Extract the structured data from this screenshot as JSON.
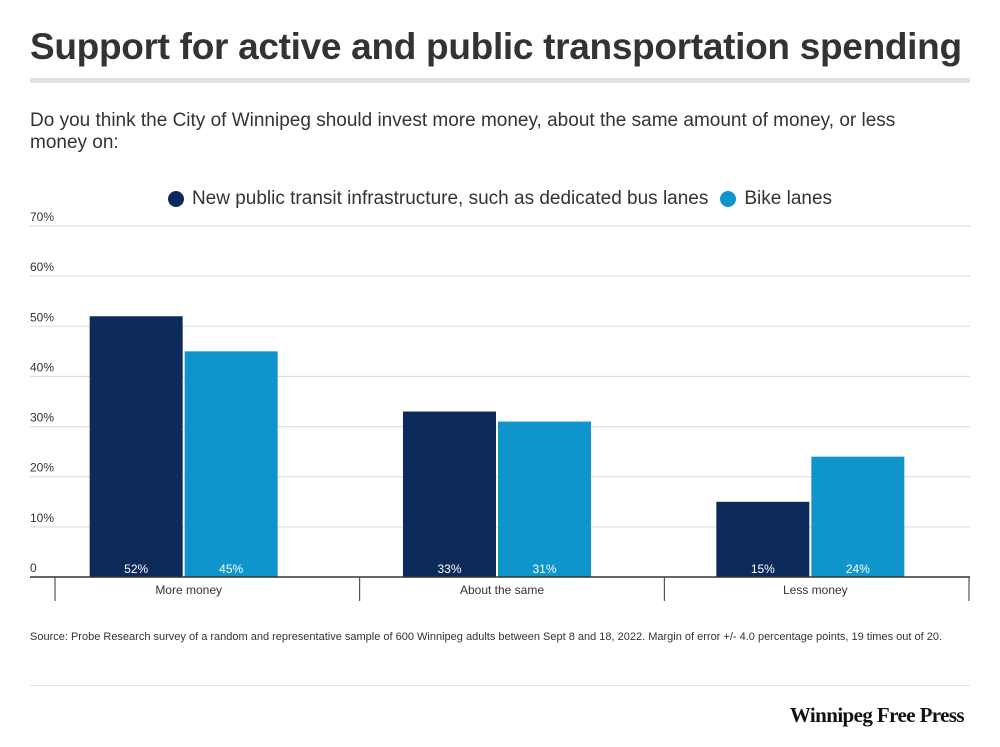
{
  "chart_data": {
    "type": "bar",
    "title": "Support for active and public transportation spending",
    "subtitle": "Do you think the City of Winnipeg should invest more money, about the same amount of money, or less money on:",
    "categories": [
      "More money",
      "About the same",
      "Less money"
    ],
    "series": [
      {
        "name": "New public transit infrastructure, such as dedicated bus lanes",
        "color": "#0c2b5a",
        "values": [
          52,
          33,
          15
        ],
        "labels": [
          "52%",
          "33%",
          "15%"
        ]
      },
      {
        "name": "Bike lanes",
        "color": "#0f94cc",
        "values": [
          45,
          31,
          24
        ],
        "labels": [
          "45%",
          "31%",
          "24%"
        ]
      }
    ],
    "ylim": [
      0,
      70
    ],
    "yticks": [
      0,
      10,
      20,
      30,
      40,
      50,
      60,
      70
    ],
    "ytick_labels": [
      "0",
      "10%",
      "20%",
      "30%",
      "40%",
      "50%",
      "60%",
      "70%"
    ],
    "xlabel": "",
    "ylabel": "",
    "grid": true,
    "legend_position": "top-center",
    "source": "Source: Probe Research survey of a random and representative sample of 600 Winnipeg adults between Sept 8 and 18, 2022. Margin of error +/- 4.0 percentage points, 19 times out of 20.",
    "brand": "Winnipeg Free Press"
  }
}
